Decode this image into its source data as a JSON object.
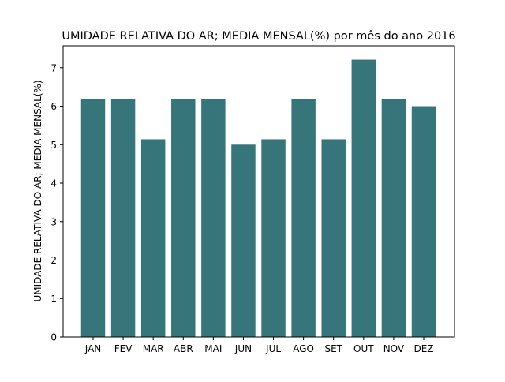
{
  "chart_data": {
    "type": "bar",
    "title": "UMIDADE RELATIVA DO AR; MEDIA MENSAL(%) por mês do ano 2016",
    "xlabel": "",
    "ylabel": "UMIDADE RELATIVA DO AR; MEDIA MENSAL(%)",
    "categories": [
      "JAN",
      "FEV",
      "MAR",
      "ABR",
      "MAI",
      "JUN",
      "JUL",
      "AGO",
      "SET",
      "OUT",
      "NOV",
      "DEZ"
    ],
    "values": [
      6.18,
      6.18,
      5.14,
      6.18,
      6.18,
      5.0,
      5.14,
      6.18,
      5.14,
      7.21,
      6.18,
      6.0
    ],
    "ylim": [
      0,
      7.57
    ],
    "yticks": [
      0,
      1,
      2,
      3,
      4,
      5,
      6,
      7
    ],
    "ytick_labels": [
      "0",
      "1",
      "2",
      "3",
      "4",
      "5",
      "6",
      "7"
    ],
    "bar_color": "#36767a",
    "grid": false,
    "legend": null
  }
}
